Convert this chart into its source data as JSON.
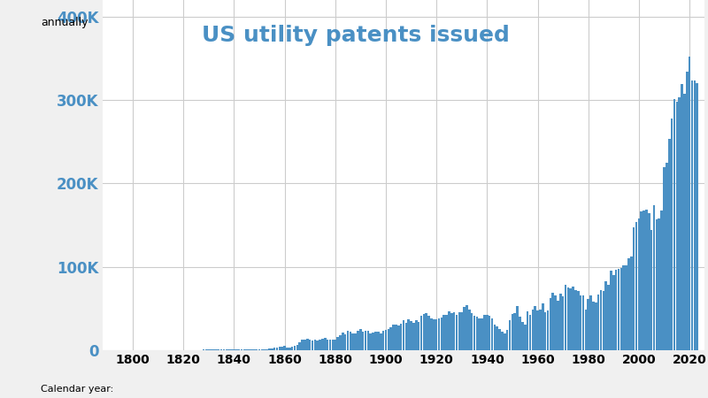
{
  "title": "US utility patents issued",
  "xlabel": "Calendar year:",
  "ylabel": "annually",
  "bar_color": "#4a90c4",
  "background_color": "#f0f0f0",
  "plot_background": "#ffffff",
  "title_color": "#4a90c4",
  "axis_label_color": "#4a90c4",
  "tick_label_color": "#000000",
  "grid_color": "#cccccc",
  "ylim": [
    0,
    420000
  ],
  "ytick_values": [
    0,
    100000,
    200000,
    300000,
    400000
  ],
  "ytick_labels": [
    "0",
    "100K",
    "200K",
    "300K",
    "400K"
  ],
  "xtick_values": [
    1800,
    1820,
    1840,
    1860,
    1880,
    1900,
    1920,
    1940,
    1960,
    1980,
    2000,
    2020
  ],
  "patent_data": {
    "1790": 3,
    "1791": 33,
    "1792": 11,
    "1793": 20,
    "1794": 22,
    "1795": 12,
    "1796": 19,
    "1797": 52,
    "1798": 28,
    "1799": 44,
    "1800": 41,
    "1801": 44,
    "1802": 65,
    "1803": 97,
    "1804": 84,
    "1805": 57,
    "1806": 63,
    "1807": 99,
    "1808": 158,
    "1809": 203,
    "1810": 223,
    "1811": 215,
    "1812": 238,
    "1813": 181,
    "1814": 210,
    "1815": 173,
    "1816": 206,
    "1817": 294,
    "1818": 222,
    "1819": 156,
    "1820": 155,
    "1821": 168,
    "1822": 200,
    "1823": 173,
    "1824": 228,
    "1825": 304,
    "1826": 323,
    "1827": 331,
    "1828": 368,
    "1829": 447,
    "1830": 544,
    "1831": 573,
    "1832": 474,
    "1833": 586,
    "1834": 630,
    "1835": 752,
    "1836": 702,
    "1837": 426,
    "1838": 514,
    "1839": 404,
    "1840": 458,
    "1841": 495,
    "1842": 488,
    "1843": 531,
    "1844": 502,
    "1845": 473,
    "1846": 619,
    "1847": 572,
    "1848": 660,
    "1849": 1070,
    "1850": 995,
    "1851": 869,
    "1852": 1020,
    "1853": 958,
    "1854": 1755,
    "1855": 2024,
    "1856": 2502,
    "1857": 2910,
    "1858": 3710,
    "1859": 4160,
    "1860": 4778,
    "1861": 3340,
    "1862": 3521,
    "1863": 3773,
    "1864": 4630,
    "1865": 6616,
    "1866": 9450,
    "1867": 12277,
    "1868": 12526,
    "1869": 13986,
    "1870": 12137,
    "1871": 11659,
    "1872": 12180,
    "1873": 11616,
    "1874": 12230,
    "1875": 13291,
    "1876": 14169,
    "1877": 12920,
    "1878": 12345,
    "1879": 12126,
    "1880": 12926,
    "1881": 15543,
    "1882": 18091,
    "1883": 21162,
    "1884": 19118,
    "1885": 23285,
    "1886": 21767,
    "1887": 20406,
    "1888": 19547,
    "1889": 23321,
    "1890": 25313,
    "1891": 22312,
    "1892": 22647,
    "1893": 22748,
    "1894": 19952,
    "1895": 20856,
    "1896": 21808,
    "1897": 22062,
    "1898": 20415,
    "1899": 23524,
    "1900": 24656,
    "1901": 25527,
    "1902": 27119,
    "1903": 31053,
    "1904": 30258,
    "1905": 29775,
    "1906": 31171,
    "1907": 35859,
    "1908": 32839,
    "1909": 36561,
    "1910": 35168,
    "1911": 32856,
    "1912": 36024,
    "1913": 34233,
    "1914": 40949,
    "1915": 43118,
    "1916": 44173,
    "1917": 41178,
    "1918": 38438,
    "1919": 36788,
    "1920": 37060,
    "1921": 37798,
    "1922": 39498,
    "1923": 42506,
    "1924": 42584,
    "1925": 46432,
    "1926": 44696,
    "1927": 45162,
    "1928": 42357,
    "1929": 45267,
    "1930": 45226,
    "1931": 51680,
    "1932": 53458,
    "1933": 49064,
    "1934": 44657,
    "1935": 40742,
    "1936": 40004,
    "1937": 37552,
    "1938": 38021,
    "1939": 42119,
    "1940": 42237,
    "1941": 41088,
    "1942": 38449,
    "1943": 31054,
    "1944": 28137,
    "1945": 25696,
    "1946": 21803,
    "1947": 20112,
    "1948": 23957,
    "1949": 35469,
    "1950": 43040,
    "1951": 44340,
    "1952": 52673,
    "1953": 40238,
    "1954": 33828,
    "1955": 30432,
    "1956": 46906,
    "1957": 42755,
    "1958": 48439,
    "1959": 52726,
    "1960": 47170,
    "1961": 48405,
    "1962": 55691,
    "1963": 45408,
    "1964": 47376,
    "1965": 62932,
    "1966": 68406,
    "1967": 65269,
    "1968": 59102,
    "1969": 67964,
    "1970": 64427,
    "1971": 78323,
    "1972": 74810,
    "1973": 74143,
    "1974": 76284,
    "1975": 72160,
    "1976": 70940,
    "1977": 65269,
    "1978": 66102,
    "1979": 48855,
    "1980": 61819,
    "1981": 65771,
    "1982": 57888,
    "1983": 56860,
    "1984": 67200,
    "1985": 71661,
    "1986": 70860,
    "1987": 83019,
    "1988": 77924,
    "1989": 95537,
    "1990": 90365,
    "1991": 96513,
    "1992": 97443,
    "1993": 98342,
    "1994": 101679,
    "1995": 101419,
    "1996": 109646,
    "1997": 111984,
    "1998": 147517,
    "1999": 153485,
    "2000": 157494,
    "2001": 166039,
    "2002": 167331,
    "2003": 169023,
    "2004": 164290,
    "2005": 143806,
    "2006": 173772,
    "2007": 157282,
    "2008": 157772,
    "2009": 167349,
    "2010": 219614,
    "2011": 224505,
    "2012": 253155,
    "2013": 277835,
    "2014": 300678,
    "2015": 298407,
    "2016": 303049,
    "2017": 318829,
    "2018": 307759,
    "2019": 333530,
    "2020": 351993,
    "2021": 323369,
    "2022": 323146,
    "2023": 320252
  }
}
